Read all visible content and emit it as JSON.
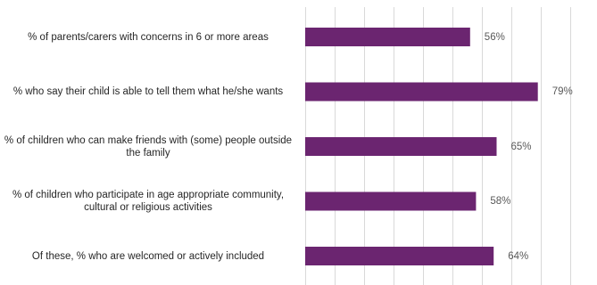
{
  "chart_data": {
    "type": "bar",
    "orientation": "horizontal",
    "categories": [
      "% of parents/carers with concerns in 6 or more areas",
      "% who say their child is able to tell them what he/she wants",
      "% of children who can make friends with (some) people outside the family",
      "% of children who participate in age appropriate community, cultural or religious activities",
      "Of these, % who are welcomed or actively included"
    ],
    "values": [
      56,
      79,
      65,
      58,
      64
    ],
    "value_labels": [
      "56%",
      "79%",
      "65%",
      "58%",
      "64%"
    ],
    "xlim": [
      0,
      100
    ],
    "grid": true,
    "bar_color": "#6B2570",
    "grid_color": "#d9d9d9"
  }
}
